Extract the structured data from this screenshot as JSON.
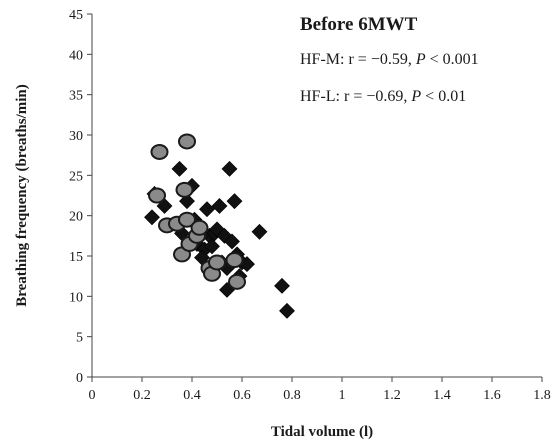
{
  "chart_data": {
    "type": "scatter",
    "title": "Before 6MWT",
    "xlabel": "Tidal volume (l)",
    "ylabel": "Breathing frequency (breaths/min)",
    "xlim": [
      0,
      1.8
    ],
    "ylim": [
      0,
      45
    ],
    "x_ticks": [
      "0",
      "0.2",
      "0.4",
      "0.6",
      "0.8",
      "1",
      "1.2",
      "1.4",
      "1.6",
      "1.8"
    ],
    "y_ticks": [
      "0",
      "5",
      "10",
      "15",
      "20",
      "25",
      "30",
      "35",
      "40",
      "45"
    ],
    "annotations": [
      {
        "prefix": "HF-M:  r = ",
        "minus": "−",
        "value": "0.59, ",
        "p": "P",
        "rest": " < 0.001"
      },
      {
        "prefix": "HF-L:  r = ",
        "minus": "−",
        "value": "0.69, ",
        "p": "P",
        "rest": " < 0.01"
      }
    ],
    "grid": false,
    "series": [
      {
        "marker": "diamond",
        "color": "#111111",
        "points": [
          [
            0.24,
            19.8
          ],
          [
            0.25,
            22.7
          ],
          [
            0.29,
            21.2
          ],
          [
            0.35,
            25.8
          ],
          [
            0.36,
            17.8
          ],
          [
            0.38,
            21.8
          ],
          [
            0.4,
            23.7
          ],
          [
            0.41,
            19.5
          ],
          [
            0.42,
            16.5
          ],
          [
            0.43,
            18.7
          ],
          [
            0.45,
            15.8
          ],
          [
            0.46,
            20.8
          ],
          [
            0.47,
            17.5
          ],
          [
            0.48,
            16.2
          ],
          [
            0.49,
            17.8
          ],
          [
            0.5,
            18.3
          ],
          [
            0.51,
            21.2
          ],
          [
            0.52,
            14.2
          ],
          [
            0.53,
            17.5
          ],
          [
            0.54,
            13.5
          ],
          [
            0.55,
            25.8
          ],
          [
            0.56,
            16.8
          ],
          [
            0.57,
            21.8
          ],
          [
            0.58,
            15.2
          ],
          [
            0.59,
            12.5
          ],
          [
            0.6,
            14.2
          ],
          [
            0.62,
            14.0
          ],
          [
            0.54,
            10.8
          ],
          [
            0.67,
            18.0
          ],
          [
            0.76,
            11.3
          ],
          [
            0.78,
            8.2
          ],
          [
            0.44,
            14.8
          ]
        ]
      },
      {
        "marker": "circle",
        "color": "#8a8a8a",
        "points": [
          [
            0.27,
            27.9
          ],
          [
            0.38,
            29.2
          ],
          [
            0.26,
            22.5
          ],
          [
            0.37,
            23.2
          ],
          [
            0.3,
            18.8
          ],
          [
            0.34,
            19.0
          ],
          [
            0.38,
            19.5
          ],
          [
            0.36,
            15.2
          ],
          [
            0.39,
            16.5
          ],
          [
            0.42,
            17.5
          ],
          [
            0.43,
            18.5
          ],
          [
            0.47,
            13.5
          ],
          [
            0.48,
            12.8
          ],
          [
            0.5,
            14.2
          ],
          [
            0.57,
            14.5
          ],
          [
            0.58,
            11.8
          ]
        ]
      }
    ]
  }
}
